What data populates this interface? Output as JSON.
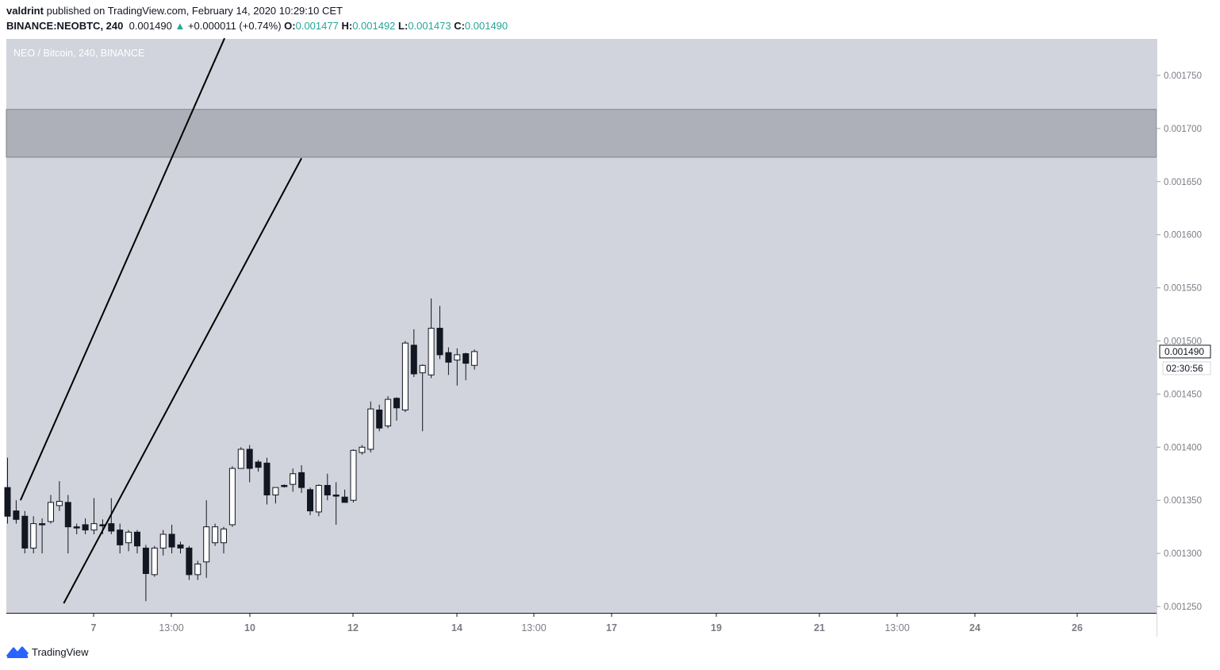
{
  "header": {
    "publisher_user": "valdrint",
    "publisher_text": "published on TradingView.com, February 14, 2020 10:29:10 CET",
    "symbol": "BINANCE:NEOBTC, 240",
    "last": "0.001490",
    "change_arrow": "▲",
    "change": "+0.000011 (+0.74%)",
    "o_label": "O:",
    "o": "0.001477",
    "h_label": "H:",
    "h": "0.001492",
    "l_label": "L:",
    "l": "0.001473",
    "c_label": "C:",
    "c": "0.001490"
  },
  "chart_label": "NEO / Bitcoin, 240, BINANCE",
  "price_tag": "0.001490",
  "countdown": "02:30:56",
  "brand": "TradingView",
  "colors": {
    "background": "#d1d4dc",
    "zone": "#adb0b8",
    "up_candle": "#ffffff",
    "down_candle": "#131722",
    "trendline": "#000000",
    "accent_up": "#26a69a",
    "brand_blue": "#2962ff"
  },
  "chart_data": {
    "type": "candlestick",
    "title": "NEO / Bitcoin, 240, BINANCE",
    "ylim": [
      0.001245,
      0.001785
    ],
    "y_ticks": [
      "0.001250",
      "0.001300",
      "0.001350",
      "0.001400",
      "0.001450",
      "0.001500",
      "0.001550",
      "0.001600",
      "0.001650",
      "0.001700",
      "0.001750"
    ],
    "x_tick_labels": [
      "7",
      "13:00",
      "10",
      "12",
      "14",
      "13:00",
      "17",
      "19",
      "21",
      "13:00",
      "24",
      "26"
    ],
    "resistance_zone": [
      0.001673,
      0.001718
    ],
    "channel": {
      "upper": {
        "start": {
          "x": 1.5,
          "y": 0.00135
        },
        "end": {
          "x": 25.1,
          "y": 0.001785
        }
      },
      "lower": {
        "start": {
          "x": 6.5,
          "y": 0.001253
        },
        "end": {
          "x": 34.0,
          "y": 0.001672
        }
      }
    },
    "candles": [
      {
        "o": 0.001362,
        "h": 0.00139,
        "l": 0.001328,
        "c": 0.001335
      },
      {
        "o": 0.00134,
        "h": 0.00135,
        "l": 0.001328,
        "c": 0.001332
      },
      {
        "o": 0.001335,
        "h": 0.00134,
        "l": 0.0013,
        "c": 0.001305
      },
      {
        "o": 0.001305,
        "h": 0.001335,
        "l": 0.0013,
        "c": 0.001328
      },
      {
        "o": 0.001328,
        "h": 0.001333,
        "l": 0.0013,
        "c": 0.001327
      },
      {
        "o": 0.00133,
        "h": 0.001355,
        "l": 0.001328,
        "c": 0.001348
      },
      {
        "o": 0.001345,
        "h": 0.001368,
        "l": 0.00134,
        "c": 0.001349
      },
      {
        "o": 0.001348,
        "h": 0.001355,
        "l": 0.0013,
        "c": 0.001325
      },
      {
        "o": 0.001325,
        "h": 0.001328,
        "l": 0.001318,
        "c": 0.001324
      },
      {
        "o": 0.001327,
        "h": 0.001333,
        "l": 0.001318,
        "c": 0.001322
      },
      {
        "o": 0.001322,
        "h": 0.001352,
        "l": 0.001318,
        "c": 0.001328
      },
      {
        "o": 0.001327,
        "h": 0.001332,
        "l": 0.001318,
        "c": 0.001326
      },
      {
        "o": 0.001328,
        "h": 0.001352,
        "l": 0.001318,
        "c": 0.001321
      },
      {
        "o": 0.001322,
        "h": 0.001328,
        "l": 0.0013,
        "c": 0.001308
      },
      {
        "o": 0.00131,
        "h": 0.001322,
        "l": 0.001302,
        "c": 0.00132
      },
      {
        "o": 0.00132,
        "h": 0.001322,
        "l": 0.0013,
        "c": 0.001307
      },
      {
        "o": 0.001305,
        "h": 0.001308,
        "l": 0.001255,
        "c": 0.001281
      },
      {
        "o": 0.00128,
        "h": 0.001307,
        "l": 0.001278,
        "c": 0.001305
      },
      {
        "o": 0.001305,
        "h": 0.001322,
        "l": 0.001298,
        "c": 0.001318
      },
      {
        "o": 0.001318,
        "h": 0.001327,
        "l": 0.0013,
        "c": 0.001306
      },
      {
        "o": 0.001308,
        "h": 0.001311,
        "l": 0.0013,
        "c": 0.001305
      },
      {
        "o": 0.001305,
        "h": 0.001307,
        "l": 0.001275,
        "c": 0.00128
      },
      {
        "o": 0.00128,
        "h": 0.001293,
        "l": 0.001275,
        "c": 0.00129
      },
      {
        "o": 0.001292,
        "h": 0.00135,
        "l": 0.001277,
        "c": 0.001325
      },
      {
        "o": 0.00131,
        "h": 0.001328,
        "l": 0.001307,
        "c": 0.001325
      },
      {
        "o": 0.00131,
        "h": 0.001325,
        "l": 0.0013,
        "c": 0.001323
      },
      {
        "o": 0.001327,
        "h": 0.001382,
        "l": 0.001325,
        "c": 0.00138
      },
      {
        "o": 0.00138,
        "h": 0.0014,
        "l": 0.00138,
        "c": 0.001398
      },
      {
        "o": 0.001398,
        "h": 0.001402,
        "l": 0.001367,
        "c": 0.00138
      },
      {
        "o": 0.001386,
        "h": 0.001388,
        "l": 0.001377,
        "c": 0.001381
      },
      {
        "o": 0.001385,
        "h": 0.00139,
        "l": 0.001346,
        "c": 0.001355
      },
      {
        "o": 0.001355,
        "h": 0.001362,
        "l": 0.001347,
        "c": 0.001362
      },
      {
        "o": 0.001364,
        "h": 0.001365,
        "l": 0.001362,
        "c": 0.001363
      },
      {
        "o": 0.001365,
        "h": 0.00138,
        "l": 0.001358,
        "c": 0.001375
      },
      {
        "o": 0.001376,
        "h": 0.001383,
        "l": 0.001357,
        "c": 0.001362
      },
      {
        "o": 0.00136,
        "h": 0.001362,
        "l": 0.001336,
        "c": 0.00134
      },
      {
        "o": 0.001339,
        "h": 0.001365,
        "l": 0.001335,
        "c": 0.001364
      },
      {
        "o": 0.001364,
        "h": 0.001375,
        "l": 0.00135,
        "c": 0.001355
      },
      {
        "o": 0.001355,
        "h": 0.001367,
        "l": 0.001327,
        "c": 0.001354
      },
      {
        "o": 0.001353,
        "h": 0.00136,
        "l": 0.001348,
        "c": 0.001348
      },
      {
        "o": 0.00135,
        "h": 0.001398,
        "l": 0.001348,
        "c": 0.001397
      },
      {
        "o": 0.001395,
        "h": 0.001402,
        "l": 0.001393,
        "c": 0.0014
      },
      {
        "o": 0.001398,
        "h": 0.001443,
        "l": 0.001395,
        "c": 0.001436
      },
      {
        "o": 0.001435,
        "h": 0.00144,
        "l": 0.001415,
        "c": 0.001418
      },
      {
        "o": 0.00142,
        "h": 0.001448,
        "l": 0.001418,
        "c": 0.001445
      },
      {
        "o": 0.001446,
        "h": 0.001447,
        "l": 0.001425,
        "c": 0.001437
      },
      {
        "o": 0.001435,
        "h": 0.0015,
        "l": 0.001433,
        "c": 0.001498
      },
      {
        "o": 0.001496,
        "h": 0.001511,
        "l": 0.001466,
        "c": 0.001469
      },
      {
        "o": 0.00147,
        "h": 0.001478,
        "l": 0.001415,
        "c": 0.001477
      },
      {
        "o": 0.001468,
        "h": 0.00154,
        "l": 0.001465,
        "c": 0.001512
      },
      {
        "o": 0.001512,
        "h": 0.001533,
        "l": 0.001483,
        "c": 0.001487
      },
      {
        "o": 0.001489,
        "h": 0.001494,
        "l": 0.001468,
        "c": 0.00148
      },
      {
        "o": 0.001482,
        "h": 0.001493,
        "l": 0.001458,
        "c": 0.001487
      },
      {
        "o": 0.001488,
        "h": 0.001489,
        "l": 0.001463,
        "c": 0.001479
      },
      {
        "o": 0.001477,
        "h": 0.001492,
        "l": 0.001473,
        "c": 0.00149
      }
    ]
  }
}
